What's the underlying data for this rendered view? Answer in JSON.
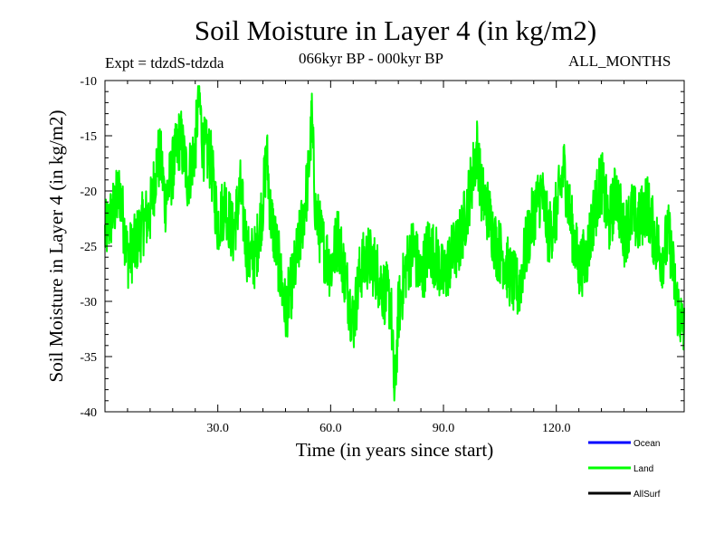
{
  "chart_data": {
    "type": "line",
    "title": "Soil Moisture in Layer 4 (in kg/m2)",
    "subtitle_left": "Expt = tdzdS-tdzda",
    "subtitle_center": "066kyr BP - 000kyr BP",
    "subtitle_right": "ALL_MONTHS",
    "xlabel": "Time (in years since start)",
    "ylabel": "Soil Moisture in Layer 4 (in kg/m2)",
    "xlim": [
      0,
      154
    ],
    "ylim": [
      -40,
      -10
    ],
    "xticks": [
      30,
      60,
      90,
      120
    ],
    "xtick_labels": [
      "30.0",
      "60.0",
      "90.0",
      "120.0"
    ],
    "yticks": [
      -10,
      -15,
      -20,
      -25,
      -30,
      -35,
      -40
    ],
    "ytick_labels": [
      "-10",
      "-15",
      "-20",
      "-25",
      "-30",
      "-35",
      "-40"
    ],
    "legend": [
      {
        "name": "Ocean",
        "color": "#0000ff"
      },
      {
        "name": "Land",
        "color": "#00ff00"
      },
      {
        "name": "AllSurf",
        "color": "#000000"
      }
    ],
    "series": [
      {
        "name": "Land",
        "color": "#00ff00",
        "x": [
          0,
          2,
          4,
          6,
          8,
          10,
          12,
          14,
          15,
          16,
          18,
          20,
          22,
          24,
          25,
          26,
          28,
          30,
          32,
          34,
          36,
          38,
          40,
          42,
          43,
          44,
          46,
          48,
          50,
          52,
          54,
          55,
          56,
          58,
          60,
          62,
          64,
          66,
          68,
          70,
          72,
          74,
          76,
          77,
          78,
          80,
          82,
          84,
          86,
          88,
          90,
          92,
          94,
          96,
          98,
          99,
          100,
          102,
          104,
          106,
          108,
          110,
          112,
          114,
          116,
          118,
          120,
          122,
          124,
          126,
          128,
          130,
          132,
          134,
          136,
          138,
          140,
          142,
          144,
          146,
          148,
          150,
          152,
          154
        ],
        "values": [
          -24,
          -22,
          -20,
          -26,
          -25,
          -23,
          -22,
          -17,
          -17.5,
          -21,
          -18,
          -15,
          -19,
          -16,
          -11,
          -16,
          -17,
          -23,
          -21,
          -24,
          -20,
          -26,
          -26,
          -21,
          -16.5,
          -22,
          -26,
          -31,
          -28,
          -24,
          -19,
          -13.5,
          -22,
          -25,
          -27,
          -24,
          -28,
          -32,
          -27,
          -26,
          -27,
          -29,
          -30,
          -39,
          -31,
          -27,
          -25,
          -28,
          -25,
          -26,
          -28,
          -26,
          -25,
          -22,
          -18,
          -16,
          -20,
          -22,
          -25,
          -26,
          -28,
          -29,
          -25,
          -22,
          -20,
          -24,
          -22,
          -18,
          -23,
          -27,
          -26,
          -22,
          -19,
          -23,
          -20,
          -24,
          -22,
          -23,
          -21,
          -24,
          -26,
          -24,
          -30,
          -33
        ]
      }
    ]
  }
}
